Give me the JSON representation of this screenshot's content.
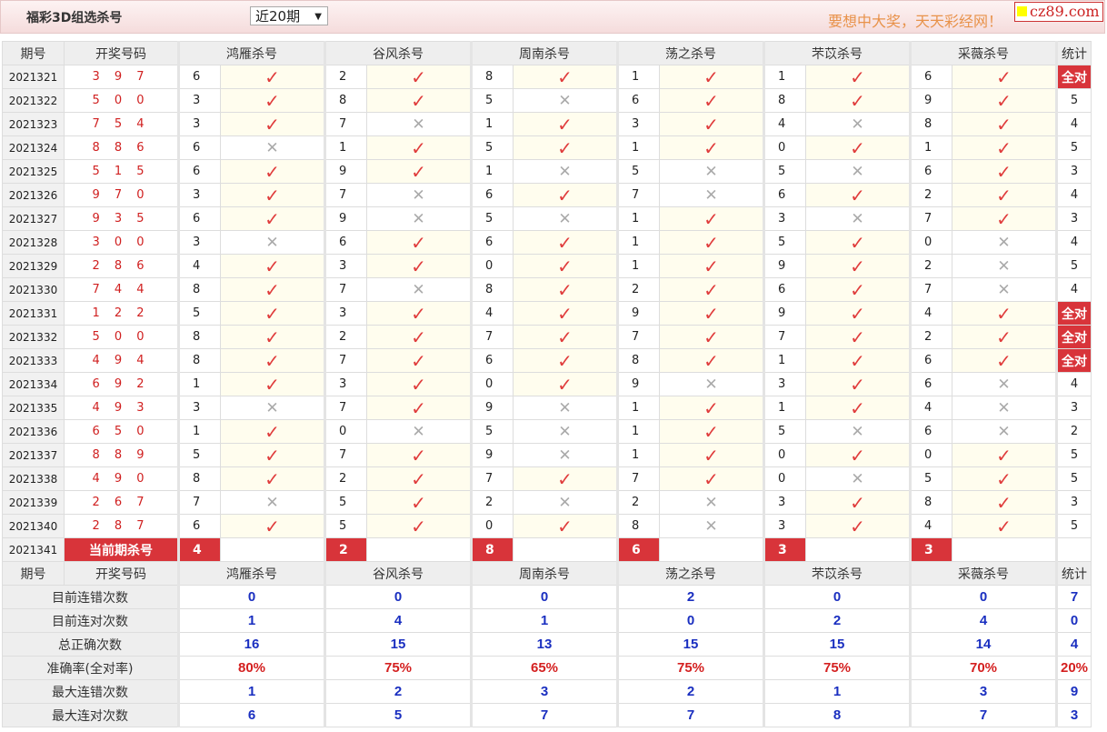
{
  "header": {
    "title": "福彩3D组选杀号",
    "period_select": "近20期",
    "slogan": "要想中大奖，天天彩经网！",
    "logo": "cz89.com"
  },
  "columns": {
    "period": "期号",
    "number": "开奖号码",
    "experts": [
      "鸿雁杀号",
      "谷风杀号",
      "周南杀号",
      "荡之杀号",
      "芣苡杀号",
      "采薇杀号"
    ],
    "stat": "统计"
  },
  "rows": [
    {
      "period": "2021321",
      "number": "3 9 7",
      "kills": [
        [
          "6",
          1
        ],
        [
          "2",
          1
        ],
        [
          "8",
          1
        ],
        [
          "1",
          1
        ],
        [
          "1",
          1
        ],
        [
          "6",
          1
        ]
      ],
      "stat": "全对"
    },
    {
      "period": "2021322",
      "number": "5 0 0",
      "kills": [
        [
          "3",
          1
        ],
        [
          "8",
          1
        ],
        [
          "5",
          0
        ],
        [
          "6",
          1
        ],
        [
          "8",
          1
        ],
        [
          "9",
          1
        ]
      ],
      "stat": "5"
    },
    {
      "period": "2021323",
      "number": "7 5 4",
      "kills": [
        [
          "3",
          1
        ],
        [
          "7",
          0
        ],
        [
          "1",
          1
        ],
        [
          "3",
          1
        ],
        [
          "4",
          0
        ],
        [
          "8",
          1
        ]
      ],
      "stat": "4"
    },
    {
      "period": "2021324",
      "number": "8 8 6",
      "kills": [
        [
          "6",
          0
        ],
        [
          "1",
          1
        ],
        [
          "5",
          1
        ],
        [
          "1",
          1
        ],
        [
          "0",
          1
        ],
        [
          "1",
          1
        ]
      ],
      "stat": "5"
    },
    {
      "period": "2021325",
      "number": "5 1 5",
      "kills": [
        [
          "6",
          1
        ],
        [
          "9",
          1
        ],
        [
          "1",
          0
        ],
        [
          "5",
          0
        ],
        [
          "5",
          0
        ],
        [
          "6",
          1
        ]
      ],
      "stat": "3"
    },
    {
      "period": "2021326",
      "number": "9 7 0",
      "kills": [
        [
          "3",
          1
        ],
        [
          "7",
          0
        ],
        [
          "6",
          1
        ],
        [
          "7",
          0
        ],
        [
          "6",
          1
        ],
        [
          "2",
          1
        ]
      ],
      "stat": "4"
    },
    {
      "period": "2021327",
      "number": "9 3 5",
      "kills": [
        [
          "6",
          1
        ],
        [
          "9",
          0
        ],
        [
          "5",
          0
        ],
        [
          "1",
          1
        ],
        [
          "3",
          0
        ],
        [
          "7",
          1
        ]
      ],
      "stat": "3"
    },
    {
      "period": "2021328",
      "number": "3 0 0",
      "kills": [
        [
          "3",
          0
        ],
        [
          "6",
          1
        ],
        [
          "6",
          1
        ],
        [
          "1",
          1
        ],
        [
          "5",
          1
        ],
        [
          "0",
          0
        ]
      ],
      "stat": "4"
    },
    {
      "period": "2021329",
      "number": "2 8 6",
      "kills": [
        [
          "4",
          1
        ],
        [
          "3",
          1
        ],
        [
          "0",
          1
        ],
        [
          "1",
          1
        ],
        [
          "9",
          1
        ],
        [
          "2",
          0
        ]
      ],
      "stat": "5"
    },
    {
      "period": "2021330",
      "number": "7 4 4",
      "kills": [
        [
          "8",
          1
        ],
        [
          "7",
          0
        ],
        [
          "8",
          1
        ],
        [
          "2",
          1
        ],
        [
          "6",
          1
        ],
        [
          "7",
          0
        ]
      ],
      "stat": "4"
    },
    {
      "period": "2021331",
      "number": "1 2 2",
      "kills": [
        [
          "5",
          1
        ],
        [
          "3",
          1
        ],
        [
          "4",
          1
        ],
        [
          "9",
          1
        ],
        [
          "9",
          1
        ],
        [
          "4",
          1
        ]
      ],
      "stat": "全对"
    },
    {
      "period": "2021332",
      "number": "5 0 0",
      "kills": [
        [
          "8",
          1
        ],
        [
          "2",
          1
        ],
        [
          "7",
          1
        ],
        [
          "7",
          1
        ],
        [
          "7",
          1
        ],
        [
          "2",
          1
        ]
      ],
      "stat": "全对"
    },
    {
      "period": "2021333",
      "number": "4 9 4",
      "kills": [
        [
          "8",
          1
        ],
        [
          "7",
          1
        ],
        [
          "6",
          1
        ],
        [
          "8",
          1
        ],
        [
          "1",
          1
        ],
        [
          "6",
          1
        ]
      ],
      "stat": "全对"
    },
    {
      "period": "2021334",
      "number": "6 9 2",
      "kills": [
        [
          "1",
          1
        ],
        [
          "3",
          1
        ],
        [
          "0",
          1
        ],
        [
          "9",
          0
        ],
        [
          "3",
          1
        ],
        [
          "6",
          0
        ]
      ],
      "stat": "4"
    },
    {
      "period": "2021335",
      "number": "4 9 3",
      "kills": [
        [
          "3",
          0
        ],
        [
          "7",
          1
        ],
        [
          "9",
          0
        ],
        [
          "1",
          1
        ],
        [
          "1",
          1
        ],
        [
          "4",
          0
        ]
      ],
      "stat": "3"
    },
    {
      "period": "2021336",
      "number": "6 5 0",
      "kills": [
        [
          "1",
          1
        ],
        [
          "0",
          0
        ],
        [
          "5",
          0
        ],
        [
          "1",
          1
        ],
        [
          "5",
          0
        ],
        [
          "6",
          0
        ]
      ],
      "stat": "2"
    },
    {
      "period": "2021337",
      "number": "8 8 9",
      "kills": [
        [
          "5",
          1
        ],
        [
          "7",
          1
        ],
        [
          "9",
          0
        ],
        [
          "1",
          1
        ],
        [
          "0",
          1
        ],
        [
          "0",
          1
        ]
      ],
      "stat": "5"
    },
    {
      "period": "2021338",
      "number": "4 9 0",
      "kills": [
        [
          "8",
          1
        ],
        [
          "2",
          1
        ],
        [
          "7",
          1
        ],
        [
          "7",
          1
        ],
        [
          "0",
          0
        ],
        [
          "5",
          1
        ]
      ],
      "stat": "5"
    },
    {
      "period": "2021339",
      "number": "2 6 7",
      "kills": [
        [
          "7",
          0
        ],
        [
          "5",
          1
        ],
        [
          "2",
          0
        ],
        [
          "2",
          0
        ],
        [
          "3",
          1
        ],
        [
          "8",
          1
        ]
      ],
      "stat": "3"
    },
    {
      "period": "2021340",
      "number": "2 8 7",
      "kills": [
        [
          "6",
          1
        ],
        [
          "5",
          1
        ],
        [
          "0",
          1
        ],
        [
          "8",
          0
        ],
        [
          "3",
          1
        ],
        [
          "4",
          1
        ]
      ],
      "stat": "5"
    }
  ],
  "current": {
    "period": "2021341",
    "label": "当前期杀号",
    "kills": [
      "4",
      "2",
      "8",
      "6",
      "3",
      "3"
    ]
  },
  "stats": [
    {
      "label": "目前连错次数",
      "values": [
        "0",
        "0",
        "0",
        "2",
        "0",
        "0"
      ],
      "stat": "7",
      "color": "blue"
    },
    {
      "label": "目前连对次数",
      "values": [
        "1",
        "4",
        "1",
        "0",
        "2",
        "4"
      ],
      "stat": "0",
      "color": "blue"
    },
    {
      "label": "总正确次数",
      "values": [
        "16",
        "15",
        "13",
        "15",
        "15",
        "14"
      ],
      "stat": "4",
      "color": "blue"
    },
    {
      "label": "准确率(全对率)",
      "values": [
        "80%",
        "75%",
        "65%",
        "75%",
        "75%",
        "70%"
      ],
      "stat": "20%",
      "color": "red"
    },
    {
      "label": "最大连错次数",
      "values": [
        "1",
        "2",
        "3",
        "2",
        "1",
        "3"
      ],
      "stat": "9",
      "color": "blue"
    },
    {
      "label": "最大连对次数",
      "values": [
        "6",
        "5",
        "7",
        "7",
        "8",
        "7"
      ],
      "stat": "3",
      "color": "blue"
    }
  ],
  "marks": {
    "correct": "✓",
    "wrong": "✕"
  },
  "colors": {
    "accent": "#d8343a",
    "check": "#e03c3c",
    "value_blue": "#1a2fc0"
  }
}
